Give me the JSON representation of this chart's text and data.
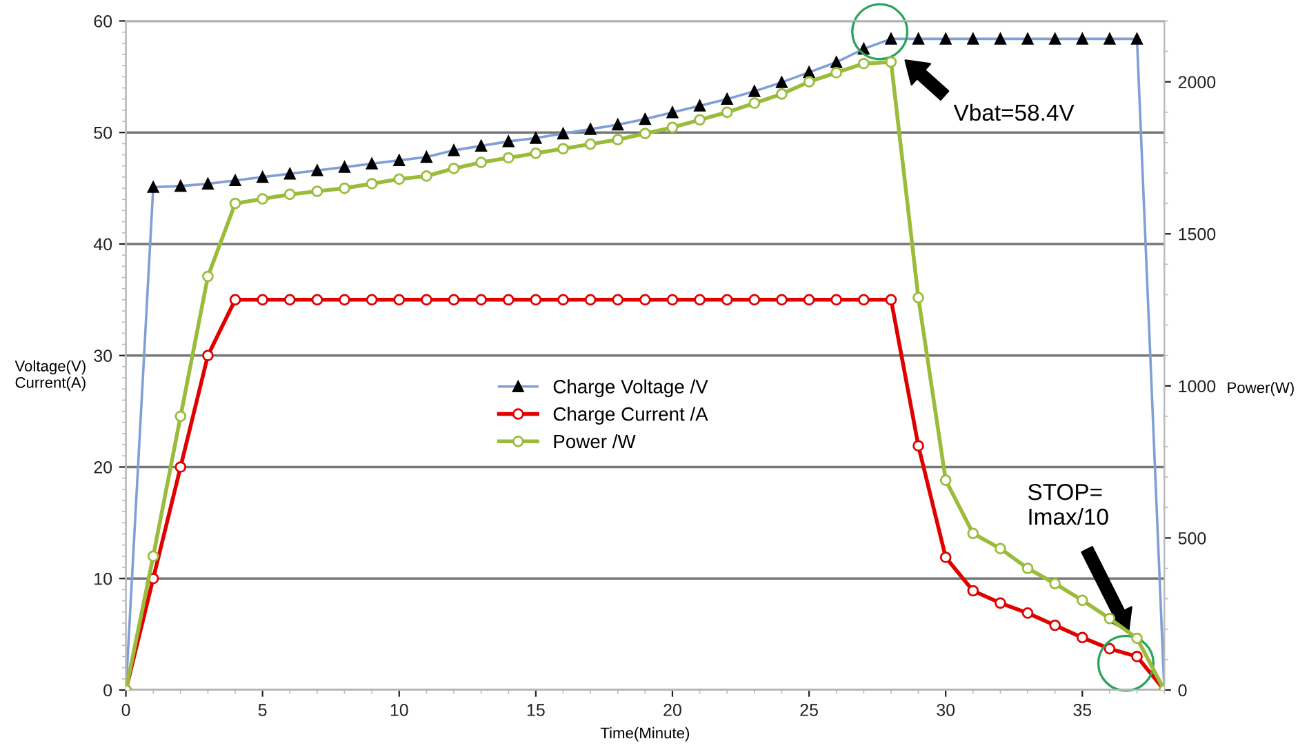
{
  "chart_data": {
    "type": "line",
    "xlabel": "Time(Minute)",
    "ylabel": "Voltage(V)\nCurrent(A)",
    "y2label": "Power(W)",
    "x": [
      0,
      1,
      2,
      3,
      4,
      5,
      6,
      7,
      8,
      9,
      10,
      11,
      12,
      13,
      14,
      15,
      16,
      17,
      18,
      19,
      20,
      21,
      22,
      23,
      24,
      25,
      26,
      27,
      28,
      29,
      30,
      31,
      32,
      33,
      34,
      35,
      36,
      37,
      38
    ],
    "series": [
      {
        "name": "Charge Voltage /V",
        "color": "#7f9fd6",
        "marker": "triangle",
        "values": [
          0,
          45.1,
          45.2,
          45.4,
          45.7,
          46.0,
          46.3,
          46.6,
          46.9,
          47.2,
          47.5,
          47.8,
          48.4,
          48.8,
          49.2,
          49.5,
          49.9,
          50.3,
          50.7,
          51.2,
          51.8,
          52.4,
          53.0,
          53.7,
          54.5,
          55.4,
          56.3,
          57.5,
          58.4,
          58.4,
          58.4,
          58.4,
          58.4,
          58.4,
          58.4,
          58.4,
          58.4,
          58.4,
          0
        ]
      },
      {
        "name": "Charge Current /A",
        "color": "#e00000",
        "marker": "circle",
        "values": [
          0,
          10,
          20,
          30,
          35,
          35,
          35,
          35,
          35,
          35,
          35,
          35,
          35,
          35,
          35,
          35,
          35,
          35,
          35,
          35,
          35,
          35,
          35,
          35,
          35,
          35,
          35,
          35,
          35,
          21.9,
          11.9,
          8.9,
          7.8,
          6.9,
          5.8,
          4.7,
          3.7,
          3.0,
          0
        ]
      },
      {
        "name": "Power /W",
        "color": "#9bbb3b",
        "marker": "circle",
        "axis": "y2",
        "values": [
          0,
          440,
          900,
          1360,
          1600,
          1615,
          1630,
          1640,
          1650,
          1665,
          1680,
          1690,
          1715,
          1735,
          1750,
          1765,
          1780,
          1795,
          1810,
          1830,
          1850,
          1875,
          1900,
          1930,
          1960,
          2000,
          2030,
          2060,
          2065,
          1290,
          690,
          515,
          465,
          400,
          350,
          295,
          235,
          170,
          0
        ]
      }
    ],
    "xlim": [
      0,
      38
    ],
    "xticks": [
      0,
      5,
      10,
      15,
      20,
      25,
      30,
      35
    ],
    "ylim": [
      0,
      60
    ],
    "yticks": [
      0,
      10,
      20,
      30,
      40,
      50,
      60
    ],
    "y2lim": [
      0,
      2200
    ],
    "y2ticks": [
      0,
      500,
      1000,
      1500,
      2000
    ],
    "grid": "y",
    "legend": "center",
    "line_style": "solid",
    "annotations": [
      "Vbat=58.4V",
      "STOP=\nImax/10"
    ]
  }
}
